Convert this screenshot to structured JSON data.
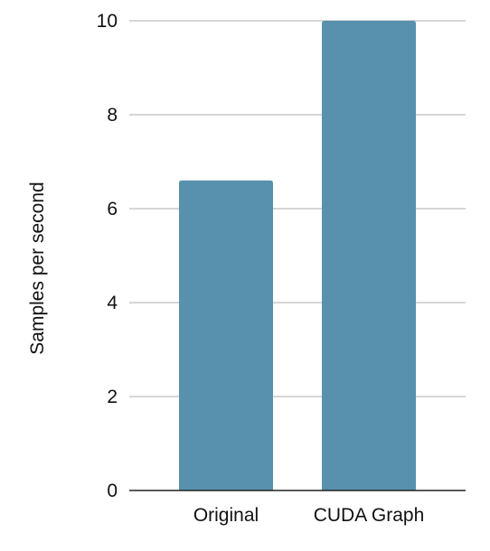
{
  "chart_data": {
    "type": "bar",
    "categories": [
      "Original",
      "CUDA Graph"
    ],
    "values": [
      6.6,
      10.0
    ],
    "title": "",
    "xlabel": "",
    "ylabel": "Samples per second",
    "ylim": [
      0,
      10
    ],
    "yticks": [
      "0",
      "2",
      "4",
      "6",
      "8",
      "10"
    ],
    "grid": true,
    "legend": "none",
    "bar_color": "#5891ae"
  }
}
